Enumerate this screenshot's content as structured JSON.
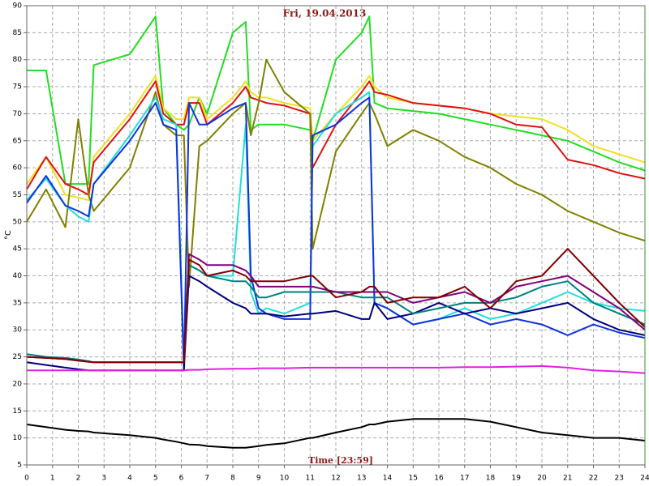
{
  "chart_data": {
    "type": "line",
    "title": "Fri, 19.04.2013",
    "x_label": "Time [23:59]",
    "y_label": "°C",
    "x": [
      0,
      0.75,
      1.5,
      2,
      2.4,
      2.6,
      4,
      5,
      5.3,
      5.8,
      6.1,
      6.3,
      6.7,
      7,
      8,
      8.5,
      8.7,
      9,
      9.3,
      10,
      11,
      11.1,
      12,
      13,
      13.3,
      13.5,
      14,
      15,
      16,
      17,
      18,
      19,
      20,
      21,
      22,
      23,
      24
    ],
    "xlim": [
      0,
      24
    ],
    "xticks": [
      0,
      1,
      2,
      3,
      4,
      5,
      6,
      7,
      8,
      9,
      10,
      11,
      12,
      13,
      14,
      15,
      16,
      17,
      18,
      19,
      20,
      21,
      22,
      23,
      24
    ],
    "ylim": [
      5,
      90
    ],
    "yticks": [
      5,
      10,
      15,
      20,
      25,
      30,
      35,
      40,
      45,
      50,
      55,
      60,
      65,
      70,
      75,
      80,
      85,
      90
    ],
    "grid": true,
    "series": [
      {
        "color": "#22dd22",
        "values": [
          78,
          78,
          57,
          57,
          57,
          79,
          81,
          88,
          71,
          68,
          67,
          68,
          73,
          70,
          85,
          87,
          67,
          68,
          68,
          68,
          67,
          65,
          80,
          85,
          88,
          72,
          71,
          70.5,
          70,
          69,
          68,
          67,
          66,
          65,
          63,
          61,
          59.5
        ]
      },
      {
        "color": "#f0e020",
        "values": [
          57,
          62,
          55,
          54.5,
          54,
          62,
          70,
          77,
          71,
          69,
          69,
          73,
          73,
          69,
          73,
          76,
          74,
          73,
          73,
          72,
          71,
          65,
          70,
          75,
          77,
          75,
          73,
          72,
          71.5,
          71,
          70,
          69.5,
          69,
          67,
          64,
          62.5,
          61
        ]
      },
      {
        "color": "#dd1111",
        "values": [
          56,
          62,
          57,
          56,
          55,
          61,
          69,
          76,
          70,
          68,
          68,
          72,
          72,
          68,
          72,
          75,
          73,
          72.5,
          72,
          71.5,
          70,
          60,
          68,
          74,
          76,
          74,
          73.5,
          72,
          71.5,
          71,
          70,
          68,
          67.5,
          61.5,
          60.5,
          59,
          58
        ]
      },
      {
        "color": "#808000",
        "values": [
          50,
          56,
          49,
          69,
          55,
          52,
          60,
          74,
          68,
          66,
          66,
          38,
          64,
          65,
          70,
          72,
          66,
          72,
          80,
          74,
          70,
          45,
          63,
          70,
          72,
          70,
          64,
          67,
          65,
          62,
          60,
          57,
          55,
          52,
          50,
          48,
          46.5
        ]
      },
      {
        "color": "#22dddd",
        "values": [
          54,
          58,
          53,
          51,
          50,
          57,
          66,
          73,
          69,
          68,
          25,
          42,
          41,
          40,
          40,
          68,
          37,
          33,
          34,
          33,
          35,
          64,
          70,
          73,
          74,
          35,
          34,
          31,
          32,
          34,
          32,
          33,
          35,
          37,
          35,
          34,
          33.5
        ]
      },
      {
        "color": "#1133dd",
        "values": [
          53.5,
          58.5,
          53,
          52,
          51,
          57,
          65,
          72,
          68,
          67,
          22.5,
          72,
          68,
          68,
          71,
          72,
          40,
          34,
          33,
          32,
          32,
          66,
          68,
          72,
          73,
          35,
          34,
          31,
          32,
          33,
          31,
          32,
          31,
          29,
          31,
          29.5,
          28.5
        ]
      },
      {
        "color": "#000080",
        "values": [
          24,
          23.5,
          23,
          22.7,
          22.5,
          22.5,
          22.5,
          22.5,
          22.5,
          22.5,
          22.5,
          40,
          39,
          38,
          35,
          34,
          33,
          33,
          33,
          32.5,
          33,
          33,
          33.5,
          32,
          32,
          35,
          32,
          33,
          35,
          33,
          34,
          33,
          34,
          35,
          32,
          30,
          29
        ]
      },
      {
        "color": "#008080",
        "values": [
          25.5,
          25,
          24.8,
          24.5,
          24.2,
          24,
          24,
          24,
          24,
          24,
          24,
          42,
          41,
          40,
          39,
          39,
          38,
          36,
          36,
          37,
          37,
          37,
          37,
          36,
          36,
          36,
          36,
          33,
          34,
          35,
          35,
          36,
          38,
          39,
          35,
          33,
          31
        ]
      },
      {
        "color": "#800080",
        "values": [
          25,
          24.8,
          24.6,
          24.3,
          24.1,
          24,
          24,
          24,
          24,
          24,
          24,
          44,
          43,
          42,
          42,
          41,
          40,
          38,
          38,
          38,
          38,
          38,
          37,
          37,
          37,
          37,
          37,
          35,
          36,
          37,
          35,
          38,
          39,
          40,
          37,
          34,
          30
        ]
      },
      {
        "color": "#800000",
        "values": [
          25,
          24.8,
          24.6,
          24.3,
          24.1,
          24,
          24,
          24,
          24,
          24,
          24,
          43,
          42,
          40,
          41,
          40,
          39,
          39,
          39,
          39,
          40,
          40,
          36,
          37,
          38,
          38,
          35,
          36,
          36,
          38,
          34,
          39,
          40,
          45,
          40,
          35,
          30.5
        ]
      },
      {
        "color": "#e020e0",
        "values": [
          22.5,
          22.5,
          22.5,
          22.5,
          22.5,
          22.5,
          22.5,
          22.5,
          22.5,
          22.5,
          22.5,
          22.6,
          22.6,
          22.7,
          22.8,
          22.8,
          22.8,
          22.9,
          22.9,
          22.9,
          23,
          23,
          23,
          23,
          23,
          23,
          23,
          23,
          23,
          23.1,
          23.1,
          23.2,
          23.3,
          23,
          22.5,
          22.3,
          22
        ]
      },
      {
        "color": "#000000",
        "values": [
          12.5,
          12,
          11.5,
          11.3,
          11.2,
          11,
          10.5,
          10,
          9.7,
          9.3,
          9,
          8.8,
          8.7,
          8.5,
          8.2,
          8.2,
          8.3,
          8.5,
          8.7,
          9,
          10,
          10,
          11,
          12,
          12.5,
          12.5,
          13,
          13.5,
          13.5,
          13.5,
          13,
          12,
          11,
          10.5,
          10,
          10,
          9.5
        ]
      }
    ]
  }
}
